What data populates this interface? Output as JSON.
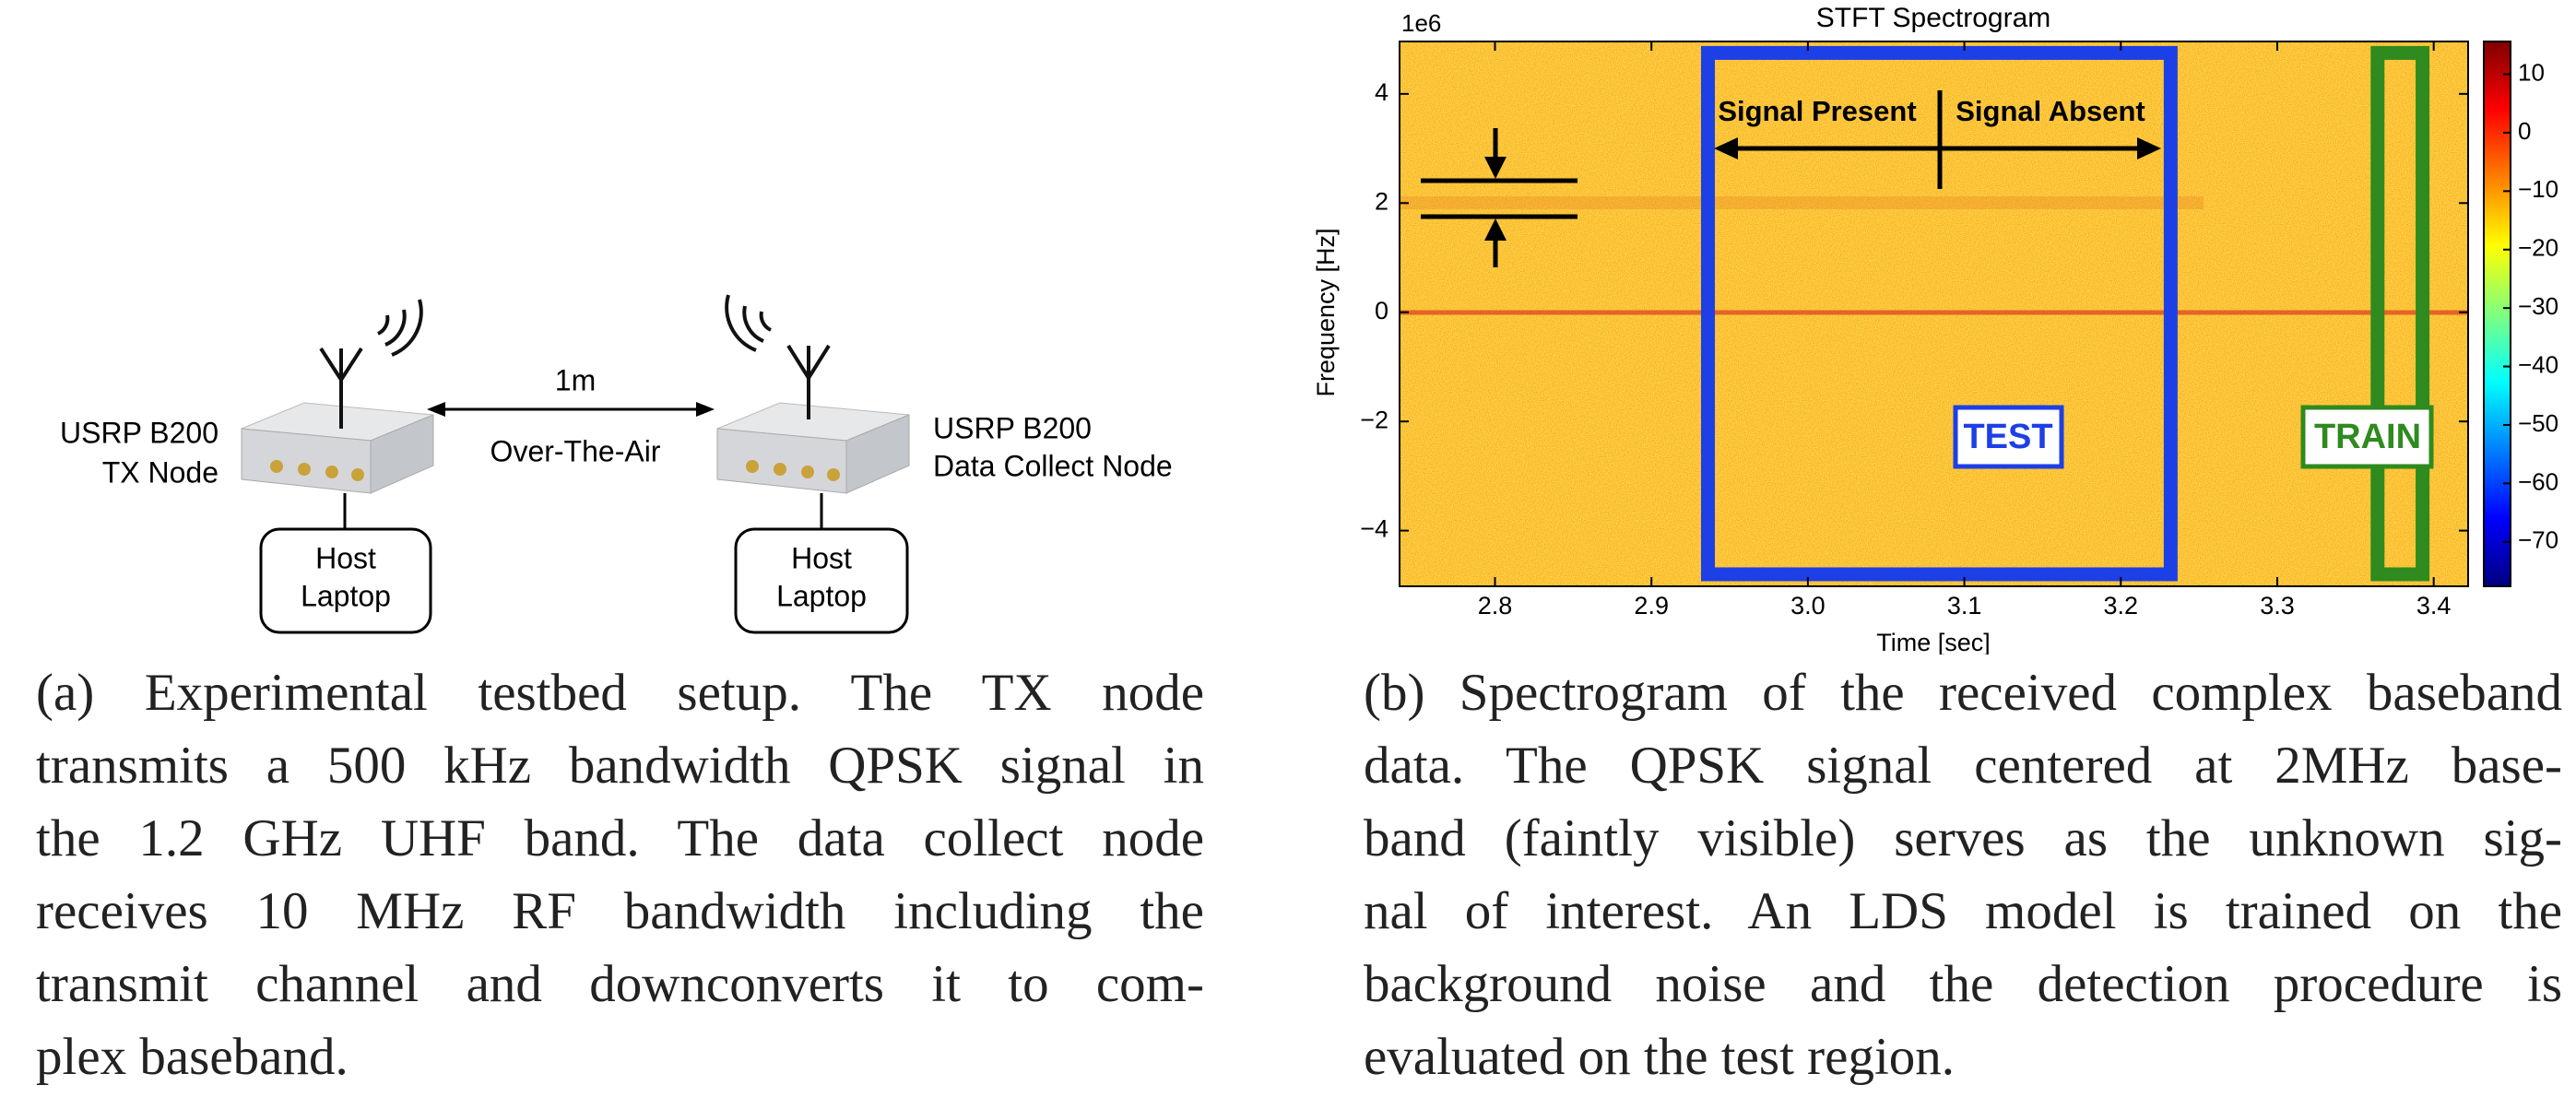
{
  "diagram": {
    "nodes": [
      {
        "name": "USRP B200",
        "role": "TX Node",
        "host": [
          "Host",
          "Laptop"
        ]
      },
      {
        "name": "USRP B200",
        "role": "Data Collect Node",
        "host": [
          "Host",
          "Laptop"
        ]
      }
    ],
    "link": {
      "distance": "1m",
      "medium": "Over-The-Air"
    }
  },
  "captions": {
    "a": [
      "(a) Experimental testbed setup.  The TX node",
      "transmits a 500 kHz bandwidth QPSK signal in",
      "the 1.2 GHz UHF band.  The data collect node",
      "receives 10 MHz RF bandwidth including the",
      "transmit channel and downconverts it to com-",
      "plex baseband."
    ],
    "b": [
      "(b) Spectrogram of the received complex baseband",
      "data.  The QPSK signal centered at 2MHz base-",
      "band (faintly visible) serves as the unknown sig-",
      "nal of interest.  An LDS model is trained on the",
      "background noise and the detection procedure is",
      "evaluated on the test region."
    ]
  },
  "chart_data": {
    "type": "spectrogram",
    "title": "STFT Spectrogram",
    "offset_label": "1e6",
    "xlabel": "Time [sec]",
    "ylabel": "Frequency [Hz]",
    "xlim": [
      2.739,
      3.422
    ],
    "xticks": [
      2.8,
      {
        "value": 2.9,
        "label": "2.9"
      },
      {
        "value": 3.0,
        "label": "3.0"
      },
      3.1,
      3.2,
      3.3,
      3.4
    ],
    "ylim": [
      -5.02,
      4.96
    ],
    "yticks": [
      {
        "value": -4,
        "label": "−4"
      },
      {
        "value": -2,
        "label": "−2"
      },
      0,
      2,
      4
    ],
    "colorbar": {
      "colormap": "jet",
      "lim": [
        -77.6,
        15.6
      ],
      "ticks": [
        10,
        0,
        {
          "value": -10,
          "label": "−10"
        },
        {
          "value": -20,
          "label": "−20"
        },
        {
          "value": -30,
          "label": "−30"
        },
        {
          "value": -40,
          "label": "−40"
        },
        {
          "value": -50,
          "label": "−50"
        },
        {
          "value": -60,
          "label": "−60"
        },
        {
          "value": -70,
          "label": "−70"
        }
      ]
    },
    "regions": [
      {
        "label": "TEST",
        "color": "#1d3fe6",
        "x": [
          2.932,
          3.236
        ],
        "y": [
          -4.8,
          4.75
        ]
      },
      {
        "label": "TRAIN",
        "color": "#2f8a1f",
        "x": [
          3.36,
          3.397
        ],
        "y": [
          -4.8,
          4.75
        ]
      }
    ],
    "annotations": {
      "left": "Signal Present",
      "right": "Signal Absent"
    }
  }
}
